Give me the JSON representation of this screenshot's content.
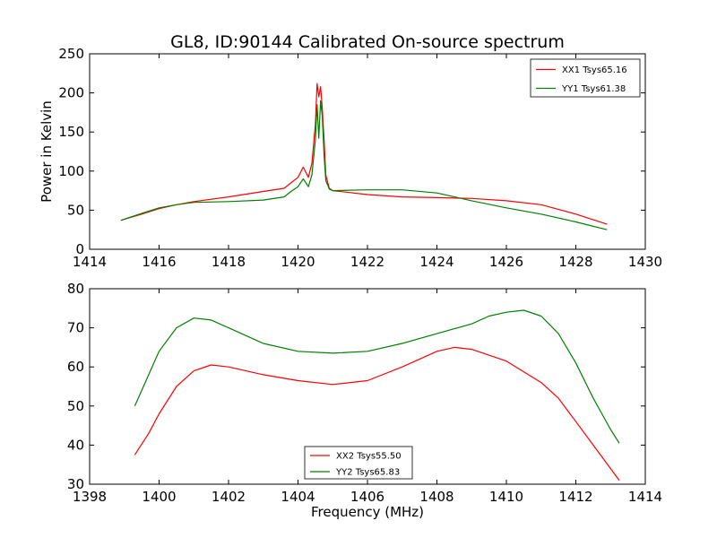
{
  "chart_data": [
    {
      "type": "line",
      "title": "GL8, ID:90144 Calibrated On-source spectrum",
      "xlabel": "",
      "ylabel": "Power in Kelvin",
      "xlim": [
        1414,
        1430
      ],
      "ylim": [
        0,
        250
      ],
      "xticks": [
        "1414",
        "1416",
        "1418",
        "1420",
        "1422",
        "1424",
        "1426",
        "1428",
        "1430"
      ],
      "yticks": [
        "0",
        "50",
        "100",
        "150",
        "200",
        "250"
      ],
      "legend_position": "top-right",
      "series": [
        {
          "name": "XX1 Tsys65.16",
          "color": "#ff0000",
          "x": [
            1414.9,
            1415.5,
            1416.0,
            1416.5,
            1417.0,
            1418.0,
            1419.0,
            1419.6,
            1419.8,
            1420.0,
            1420.15,
            1420.3,
            1420.4,
            1420.5,
            1420.55,
            1420.6,
            1420.65,
            1420.7,
            1420.75,
            1420.8,
            1420.9,
            1421.0,
            1422.0,
            1423.0,
            1424.0,
            1425.0,
            1426.0,
            1427.0,
            1428.0,
            1428.9
          ],
          "y": [
            37,
            45,
            52,
            57,
            61,
            67,
            74,
            78,
            85,
            92,
            105,
            92,
            110,
            160,
            212,
            195,
            208,
            180,
            140,
            95,
            78,
            75,
            70,
            67,
            66,
            65,
            62,
            57,
            45,
            32
          ]
        },
        {
          "name": "YY1 Tsys61.38",
          "color": "#008000",
          "x": [
            1414.9,
            1415.5,
            1416.0,
            1416.5,
            1417.0,
            1418.0,
            1419.0,
            1419.6,
            1419.8,
            1420.0,
            1420.15,
            1420.3,
            1420.4,
            1420.5,
            1420.55,
            1420.6,
            1420.65,
            1420.7,
            1420.75,
            1420.8,
            1420.9,
            1421.0,
            1422.0,
            1423.0,
            1424.0,
            1425.0,
            1426.0,
            1427.0,
            1428.0,
            1428.9
          ],
          "y": [
            37,
            46,
            53,
            57,
            60,
            61,
            63,
            67,
            74,
            80,
            90,
            80,
            95,
            140,
            185,
            142,
            190,
            170,
            120,
            88,
            77,
            75,
            76,
            76,
            72,
            62,
            53,
            45,
            35,
            25
          ]
        }
      ]
    },
    {
      "type": "line",
      "title": "",
      "xlabel": "Frequency (MHz)",
      "ylabel": "",
      "xlim": [
        1398,
        1414
      ],
      "ylim": [
        30,
        80
      ],
      "xticks": [
        "1398",
        "1400",
        "1402",
        "1404",
        "1406",
        "1408",
        "1410",
        "1412",
        "1414"
      ],
      "yticks": [
        "30",
        "40",
        "50",
        "60",
        "70",
        "80"
      ],
      "legend_position": "bottom-center",
      "series": [
        {
          "name": "XX2 Tsys55.50",
          "color": "#ff0000",
          "x": [
            1399.3,
            1399.7,
            1400.0,
            1400.5,
            1401.0,
            1401.5,
            1402.0,
            1403.0,
            1404.0,
            1405.0,
            1406.0,
            1407.0,
            1408.0,
            1408.5,
            1409.0,
            1410.0,
            1411.0,
            1411.5,
            1412.0,
            1412.5,
            1413.0,
            1413.25
          ],
          "y": [
            37.5,
            43,
            48,
            55,
            59,
            60.5,
            60,
            58,
            56.5,
            55.5,
            56.5,
            60,
            64,
            65,
            64.5,
            61.5,
            56,
            52,
            46,
            40,
            34,
            31
          ]
        },
        {
          "name": "YY2 Tsys65.83",
          "color": "#008000",
          "x": [
            1399.3,
            1399.7,
            1400.0,
            1400.5,
            1401.0,
            1401.5,
            1402.0,
            1403.0,
            1404.0,
            1405.0,
            1406.0,
            1407.0,
            1408.0,
            1409.0,
            1409.5,
            1410.0,
            1410.5,
            1411.0,
            1411.5,
            1412.0,
            1412.5,
            1413.0,
            1413.25
          ],
          "y": [
            50,
            58,
            64,
            70,
            72.5,
            72,
            70,
            66,
            64,
            63.5,
            64,
            66,
            68.5,
            71,
            73,
            74,
            74.5,
            73,
            68.5,
            61,
            52,
            44,
            40.5
          ]
        }
      ]
    }
  ]
}
